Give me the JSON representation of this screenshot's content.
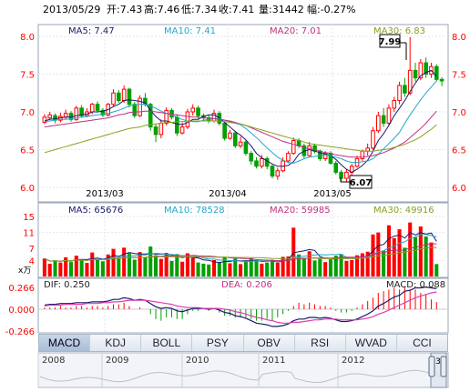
{
  "header": {
    "date": "2013/05/29",
    "open": "开:7.43",
    "high": "高:7.46",
    "low": "低:7.34",
    "close": "收:7.41",
    "volume": "量:31442",
    "change": "幅:-0.27%"
  },
  "colors": {
    "up": "#ff0000",
    "down": "#00a000",
    "ma5": "#1a1a6a",
    "ma10": "#22a8c8",
    "ma20": "#c03080",
    "ma30": "#8aa020",
    "axis": "#ff0000"
  },
  "price_panel": {
    "legend": {
      "ma5": "MA5: 7.47",
      "ma10": "MA10: 7.41",
      "ma20": "MA20: 7.01",
      "ma30": "MA30: 6.83"
    },
    "high_label": "7.99",
    "low_label": "6.07"
  },
  "volume_panel": {
    "legend": {
      "ma5": "MA5: 65676",
      "ma10": "MA10: 78528",
      "ma20": "MA20: 59985",
      "ma30": "MA30: 49916"
    },
    "unit": "x万"
  },
  "macd_panel": {
    "dif": "DIF: 0.250",
    "dea": "DEA: 0.206",
    "macd": "MACD: 0.088"
  },
  "tabs": [
    "MACD",
    "KDJ",
    "BOLL",
    "PSY",
    "OBV",
    "RSI",
    "WVAD",
    "CCI"
  ],
  "active_tab": "MACD",
  "navigator": {
    "years": [
      "2008",
      "2009",
      "2010",
      "2011",
      "2012"
    ],
    "handle_label": "3"
  },
  "chart_data": [
    {
      "type": "candlestick",
      "title": "",
      "x_labels": [
        "2013/03",
        "2013/04",
        "2013/05"
      ],
      "ylim": [
        6.0,
        8.0
      ],
      "yticks": [
        6.0,
        6.5,
        7.0,
        7.5,
        8.0
      ],
      "candles": [
        [
          6.86,
          6.93,
          6.84,
          6.97
        ],
        [
          6.92,
          6.96,
          6.9,
          7.0
        ],
        [
          6.95,
          6.89,
          6.85,
          6.98
        ],
        [
          6.89,
          6.94,
          6.86,
          6.99
        ],
        [
          6.93,
          6.98,
          6.9,
          7.03
        ],
        [
          6.98,
          6.9,
          6.87,
          7.01
        ],
        [
          6.9,
          7.05,
          6.88,
          7.08
        ],
        [
          7.05,
          6.95,
          6.92,
          7.09
        ],
        [
          6.95,
          7.0,
          6.93,
          7.05
        ],
        [
          7.0,
          7.1,
          6.97,
          7.12
        ],
        [
          7.1,
          7.02,
          6.99,
          7.14
        ],
        [
          7.02,
          6.96,
          6.93,
          7.05
        ],
        [
          6.96,
          7.1,
          6.94,
          7.12
        ],
        [
          7.1,
          7.25,
          7.07,
          7.3
        ],
        [
          7.25,
          7.15,
          7.12,
          7.29
        ],
        [
          7.15,
          7.3,
          7.12,
          7.35
        ],
        [
          7.3,
          7.1,
          7.06,
          7.32
        ],
        [
          7.1,
          6.95,
          6.92,
          7.13
        ],
        [
          6.95,
          7.18,
          6.93,
          7.22
        ],
        [
          7.18,
          7.1,
          7.07,
          7.25
        ],
        [
          7.1,
          6.8,
          6.75,
          7.12
        ],
        [
          6.8,
          6.7,
          6.6,
          6.84
        ],
        [
          6.7,
          6.85,
          6.65,
          6.9
        ],
        [
          6.85,
          7.02,
          6.82,
          7.06
        ],
        [
          7.02,
          6.93,
          6.9,
          7.05
        ],
        [
          6.93,
          6.72,
          6.68,
          6.97
        ],
        [
          6.72,
          6.8,
          6.7,
          6.86
        ],
        [
          6.8,
          7.0,
          6.77,
          7.04
        ],
        [
          7.0,
          7.05,
          6.95,
          7.1
        ],
        [
          7.05,
          6.95,
          6.91,
          7.08
        ],
        [
          6.95,
          6.92,
          6.89,
          6.98
        ],
        [
          6.92,
          6.88,
          6.85,
          6.96
        ],
        [
          6.88,
          6.98,
          6.86,
          7.03
        ],
        [
          6.98,
          6.85,
          6.82,
          7.01
        ],
        [
          6.85,
          6.65,
          6.62,
          6.88
        ],
        [
          6.65,
          6.72,
          6.63,
          6.76
        ],
        [
          6.72,
          6.55,
          6.52,
          6.75
        ],
        [
          6.55,
          6.6,
          6.52,
          6.67
        ],
        [
          6.6,
          6.45,
          6.42,
          6.63
        ],
        [
          6.45,
          6.35,
          6.3,
          6.48
        ],
        [
          6.35,
          6.28,
          6.25,
          6.4
        ],
        [
          6.28,
          6.38,
          6.25,
          6.43
        ],
        [
          6.38,
          6.28,
          6.24,
          6.41
        ],
        [
          6.28,
          6.15,
          6.12,
          6.3
        ],
        [
          6.15,
          6.22,
          6.1,
          6.26
        ],
        [
          6.22,
          6.35,
          6.2,
          6.4
        ],
        [
          6.35,
          6.45,
          6.32,
          6.48
        ],
        [
          6.45,
          6.62,
          6.43,
          6.66
        ],
        [
          6.62,
          6.55,
          6.52,
          6.65
        ],
        [
          6.55,
          6.42,
          6.38,
          6.58
        ],
        [
          6.42,
          6.55,
          6.4,
          6.6
        ],
        [
          6.55,
          6.48,
          6.45,
          6.58
        ],
        [
          6.48,
          6.38,
          6.35,
          6.5
        ],
        [
          6.38,
          6.45,
          6.35,
          6.48
        ],
        [
          6.45,
          6.32,
          6.3,
          6.48
        ],
        [
          6.32,
          6.2,
          6.17,
          6.35
        ],
        [
          6.2,
          6.12,
          6.08,
          6.23
        ],
        [
          6.12,
          6.2,
          6.07,
          6.24
        ],
        [
          6.2,
          6.28,
          6.16,
          6.31
        ],
        [
          6.28,
          6.38,
          6.26,
          6.42
        ],
        [
          6.38,
          6.48,
          6.35,
          6.5
        ],
        [
          6.48,
          6.52,
          6.42,
          6.58
        ],
        [
          6.52,
          6.75,
          6.5,
          6.8
        ],
        [
          6.75,
          6.95,
          6.72,
          7.0
        ],
        [
          6.95,
          6.85,
          6.8,
          7.05
        ],
        [
          6.85,
          7.05,
          6.82,
          7.1
        ],
        [
          7.05,
          7.15,
          7.0,
          7.2
        ],
        [
          7.15,
          7.35,
          7.1,
          7.4
        ],
        [
          7.35,
          7.25,
          7.2,
          7.45
        ],
        [
          7.25,
          7.55,
          7.22,
          7.99
        ],
        [
          7.55,
          7.45,
          7.4,
          7.65
        ],
        [
          7.45,
          7.65,
          7.42,
          7.7
        ],
        [
          7.65,
          7.5,
          7.45,
          7.72
        ],
        [
          7.5,
          7.6,
          7.45,
          7.65
        ],
        [
          7.6,
          7.43,
          7.4,
          7.63
        ],
        [
          7.43,
          7.41,
          7.34,
          7.46
        ]
      ],
      "series": [
        {
          "name": "MA5",
          "values": [
            6.88,
            6.9,
            6.91,
            6.92,
            6.93,
            6.93,
            6.95,
            6.96,
            6.97,
            7.0,
            7.0,
            7.01,
            7.03,
            7.07,
            7.1,
            7.15,
            7.16,
            7.15,
            7.14,
            7.12,
            7.02,
            6.94,
            6.88,
            6.88,
            6.86,
            6.84,
            6.83,
            6.86,
            6.9,
            6.9,
            6.94,
            6.96,
            6.96,
            6.92,
            6.86,
            6.8,
            6.74,
            6.69,
            6.63,
            6.55,
            6.45,
            6.39,
            6.35,
            6.31,
            6.28,
            6.28,
            6.29,
            6.34,
            6.44,
            6.48,
            6.5,
            6.48,
            6.46,
            6.44,
            6.42,
            6.37,
            6.3,
            6.24,
            6.2,
            6.24,
            6.29,
            6.36,
            6.48,
            6.62,
            6.71,
            6.82,
            6.95,
            7.05,
            7.15,
            7.27,
            7.38,
            7.48,
            7.52,
            7.55,
            7.47
          ]
        },
        {
          "name": "MA10",
          "values": [
            6.87,
            6.88,
            6.89,
            6.9,
            6.9,
            6.91,
            6.92,
            6.93,
            6.94,
            6.95,
            6.96,
            6.97,
            6.98,
            7.0,
            7.02,
            7.05,
            7.08,
            7.09,
            7.1,
            7.1,
            7.08,
            7.05,
            7.01,
            6.98,
            6.96,
            6.93,
            6.9,
            6.88,
            6.87,
            6.87,
            6.89,
            6.9,
            6.91,
            6.91,
            6.89,
            6.87,
            6.85,
            6.83,
            6.78,
            6.72,
            6.66,
            6.59,
            6.52,
            6.46,
            6.4,
            6.36,
            6.33,
            6.32,
            6.35,
            6.38,
            6.4,
            6.41,
            6.42,
            6.43,
            6.42,
            6.4,
            6.38,
            6.35,
            6.33,
            6.33,
            6.34,
            6.35,
            6.38,
            6.44,
            6.51,
            6.58,
            6.65,
            6.73,
            6.85,
            6.96,
            7.06,
            7.16,
            7.25,
            7.33,
            7.41
          ]
        },
        {
          "name": "MA20",
          "values": [
            6.8,
            6.81,
            6.82,
            6.83,
            6.84,
            6.85,
            6.86,
            6.87,
            6.88,
            6.89,
            6.9,
            6.91,
            6.92,
            6.94,
            6.96,
            6.97,
            6.99,
            7.0,
            7.0,
            7.01,
            7.01,
            7.0,
            6.99,
            6.98,
            6.97,
            6.96,
            6.95,
            6.94,
            6.93,
            6.93,
            6.92,
            6.92,
            6.91,
            6.9,
            6.89,
            6.88,
            6.86,
            6.84,
            6.82,
            6.79,
            6.76,
            6.73,
            6.7,
            6.67,
            6.64,
            6.61,
            6.59,
            6.57,
            6.55,
            6.53,
            6.51,
            6.5,
            6.48,
            6.46,
            6.45,
            6.43,
            6.42,
            6.41,
            6.4,
            6.4,
            6.4,
            6.41,
            6.42,
            6.44,
            6.46,
            6.49,
            6.52,
            6.56,
            6.6,
            6.66,
            6.72,
            6.78,
            6.85,
            6.93,
            7.01
          ]
        },
        {
          "name": "MA30",
          "values": [
            6.46,
            6.48,
            6.5,
            6.52,
            6.54,
            6.56,
            6.58,
            6.6,
            6.62,
            6.64,
            6.66,
            6.68,
            6.7,
            6.72,
            6.74,
            6.76,
            6.78,
            6.79,
            6.8,
            6.82,
            6.83,
            6.84,
            6.85,
            6.86,
            6.86,
            6.87,
            6.87,
            6.88,
            6.88,
            6.88,
            6.88,
            6.88,
            6.88,
            6.88,
            6.87,
            6.86,
            6.85,
            6.84,
            6.82,
            6.8,
            6.78,
            6.76,
            6.74,
            6.72,
            6.7,
            6.68,
            6.66,
            6.64,
            6.62,
            6.6,
            6.58,
            6.57,
            6.56,
            6.55,
            6.54,
            6.53,
            6.52,
            6.51,
            6.5,
            6.49,
            6.48,
            6.48,
            6.48,
            6.49,
            6.5,
            6.51,
            6.53,
            6.55,
            6.57,
            6.6,
            6.63,
            6.67,
            6.72,
            6.77,
            6.83
          ]
        }
      ]
    },
    {
      "type": "bar",
      "title": "",
      "ylim": [
        0,
        15
      ],
      "yticks": [
        4,
        7,
        11,
        15
      ],
      "values": [
        4.5,
        3.2,
        4.0,
        3.5,
        4.8,
        3.6,
        5.2,
        4.1,
        3.4,
        6.0,
        4.3,
        3.8,
        5.5,
        6.9,
        4.6,
        7.2,
        5.8,
        4.2,
        6.1,
        4.9,
        7.5,
        5.3,
        4.4,
        5.9,
        3.9,
        5.6,
        3.7,
        5.8,
        4.6,
        3.5,
        3.2,
        3.0,
        4.1,
        3.6,
        4.8,
        3.3,
        4.5,
        3.1,
        4.0,
        4.6,
        3.8,
        3.2,
        3.5,
        4.2,
        3.4,
        4.9,
        5.0,
        12.2,
        5.5,
        4.6,
        6.3,
        4.0,
        4.4,
        3.6,
        4.3,
        5.2,
        5.6,
        3.9,
        4.1,
        5.3,
        5.8,
        6.2,
        10.5,
        11.0,
        6.5,
        12.8,
        9.6,
        11.8,
        7.2,
        13.5,
        9.8,
        12.5,
        10.0,
        8.5,
        3.1
      ]
    },
    {
      "type": "bar",
      "title": "",
      "ylim": [
        -0.266,
        0.266
      ],
      "yticks": [
        0.266,
        0.0,
        -0.266
      ],
      "dif": [
        0.05,
        0.06,
        0.06,
        0.07,
        0.07,
        0.07,
        0.08,
        0.08,
        0.08,
        0.09,
        0.09,
        0.09,
        0.1,
        0.12,
        0.12,
        0.14,
        0.13,
        0.11,
        0.12,
        0.11,
        0.07,
        0.03,
        0.01,
        0.02,
        0.01,
        -0.02,
        -0.03,
        -0.01,
        0.01,
        0.01,
        0.01,
        0.0,
        0.01,
        -0.01,
        -0.04,
        -0.05,
        -0.08,
        -0.09,
        -0.11,
        -0.14,
        -0.17,
        -0.18,
        -0.19,
        -0.21,
        -0.21,
        -0.2,
        -0.18,
        -0.14,
        -0.12,
        -0.12,
        -0.1,
        -0.1,
        -0.11,
        -0.1,
        -0.11,
        -0.13,
        -0.15,
        -0.15,
        -0.14,
        -0.12,
        -0.09,
        -0.06,
        -0.02,
        0.04,
        0.07,
        0.11,
        0.15,
        0.17,
        0.22,
        0.23,
        0.26,
        0.26,
        0.27,
        0.26,
        0.25
      ],
      "dea": [
        0.04,
        0.05,
        0.05,
        0.05,
        0.06,
        0.06,
        0.06,
        0.06,
        0.07,
        0.07,
        0.07,
        0.08,
        0.08,
        0.09,
        0.09,
        0.1,
        0.11,
        0.11,
        0.11,
        0.11,
        0.1,
        0.09,
        0.08,
        0.07,
        0.06,
        0.04,
        0.03,
        0.02,
        0.02,
        0.02,
        0.01,
        0.01,
        0.01,
        0.01,
        0.0,
        -0.01,
        -0.03,
        -0.04,
        -0.06,
        -0.08,
        -0.1,
        -0.11,
        -0.13,
        -0.14,
        -0.16,
        -0.17,
        -0.17,
        -0.16,
        -0.16,
        -0.15,
        -0.14,
        -0.13,
        -0.13,
        -0.12,
        -0.12,
        -0.12,
        -0.13,
        -0.13,
        -0.13,
        -0.13,
        -0.12,
        -0.11,
        -0.09,
        -0.06,
        -0.04,
        -0.01,
        0.02,
        0.05,
        0.08,
        0.11,
        0.14,
        0.16,
        0.18,
        0.2,
        0.21
      ],
      "macd": [
        0.02,
        0.02,
        0.02,
        0.04,
        0.02,
        0.02,
        0.04,
        0.04,
        0.02,
        0.04,
        0.04,
        0.02,
        0.04,
        0.06,
        0.06,
        0.08,
        0.04,
        0.0,
        0.02,
        0.0,
        -0.06,
        -0.12,
        -0.14,
        -0.1,
        -0.1,
        -0.12,
        -0.12,
        -0.06,
        -0.02,
        -0.02,
        0.0,
        -0.02,
        0.0,
        -0.04,
        -0.08,
        -0.08,
        -0.1,
        -0.1,
        -0.1,
        -0.12,
        -0.14,
        -0.14,
        -0.12,
        -0.14,
        -0.1,
        -0.06,
        -0.02,
        0.04,
        0.08,
        0.06,
        0.08,
        0.06,
        0.04,
        0.04,
        0.02,
        -0.02,
        -0.04,
        -0.04,
        -0.02,
        0.02,
        0.06,
        0.1,
        0.14,
        0.2,
        0.22,
        0.24,
        0.26,
        0.24,
        0.28,
        0.24,
        0.24,
        0.2,
        0.18,
        0.12,
        0.088
      ]
    }
  ]
}
